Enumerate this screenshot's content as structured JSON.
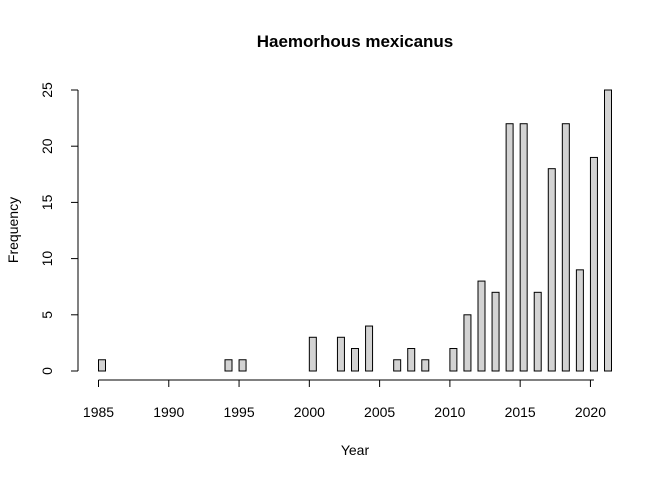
{
  "chart_data": {
    "type": "bar",
    "title": "Haemorhous mexicanus",
    "xlabel": "Year",
    "ylabel": "Frequency",
    "x": [
      1985,
      1986,
      1987,
      1988,
      1989,
      1990,
      1991,
      1992,
      1993,
      1994,
      1995,
      1996,
      1997,
      1998,
      1999,
      2000,
      2001,
      2002,
      2003,
      2004,
      2005,
      2006,
      2007,
      2008,
      2009,
      2010,
      2011,
      2012,
      2013,
      2014,
      2015,
      2016,
      2017,
      2018,
      2019,
      2020,
      2021
    ],
    "values": [
      1,
      0,
      0,
      0,
      0,
      0,
      0,
      0,
      0,
      1,
      1,
      0,
      0,
      0,
      0,
      3,
      0,
      3,
      2,
      4,
      0,
      1,
      2,
      1,
      0,
      2,
      5,
      8,
      7,
      22,
      22,
      7,
      18,
      22,
      9,
      19,
      25
    ],
    "xticks": [
      1985,
      1990,
      1995,
      2000,
      2005,
      2010,
      2015,
      2020
    ],
    "yticks": [
      0,
      5,
      10,
      15,
      20,
      25
    ],
    "xlim": [
      1985,
      2021
    ],
    "ylim": [
      0,
      25
    ],
    "grid": false,
    "bar_color": "#d3d3d3",
    "edge_color": "#000000"
  }
}
